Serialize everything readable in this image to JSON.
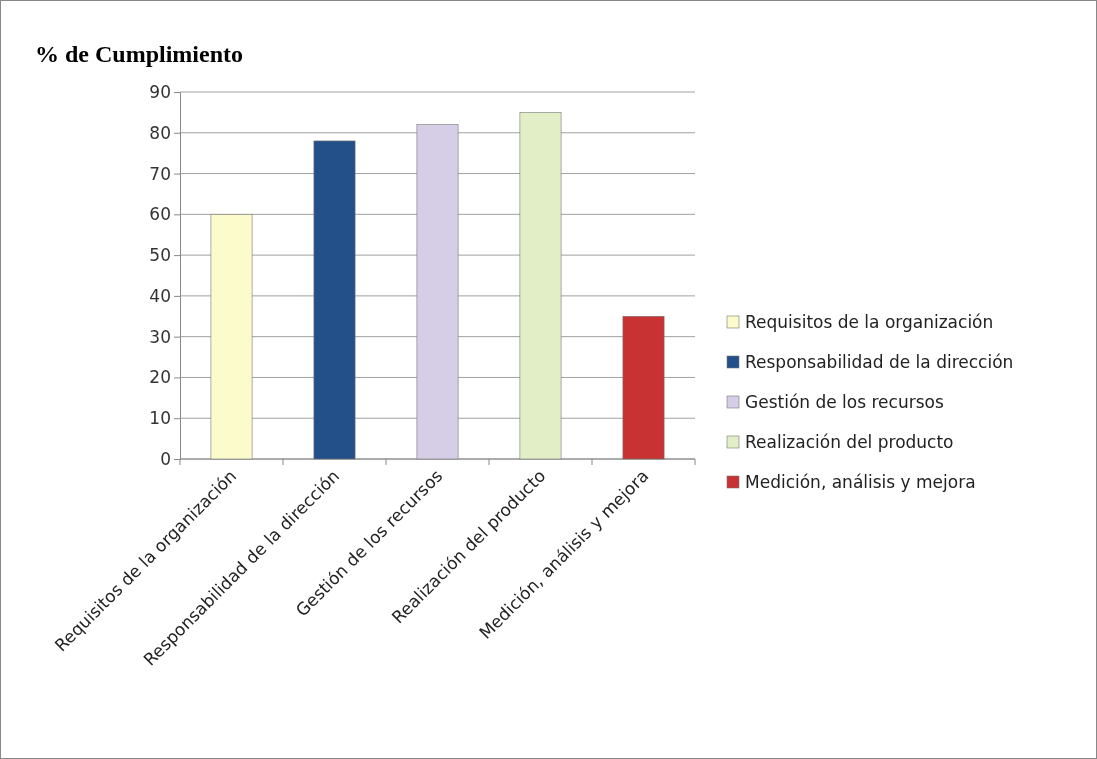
{
  "chart_data": {
    "type": "bar",
    "title": "% de Cumplimiento",
    "stacked": true,
    "categories": [
      "Requisitos de la organización",
      "Responsabilidad de la dirección",
      "Gestión de los recursos",
      "Realización del producto",
      "Medición, análisis y mejora"
    ],
    "series": [
      {
        "name": "Requisitos de la organización",
        "color": "#fbfbcc",
        "values": [
          60,
          null,
          null,
          null,
          null
        ]
      },
      {
        "name": "Responsabilidad de la dirección",
        "color": "#24508a",
        "values": [
          null,
          78,
          null,
          null,
          null
        ]
      },
      {
        "name": "Gestión de los recursos",
        "color": "#d6cde6",
        "values": [
          null,
          null,
          82,
          null,
          null
        ]
      },
      {
        "name": "Realización del producto",
        "color": "#e2efc6",
        "values": [
          null,
          null,
          null,
          85,
          null
        ]
      },
      {
        "name": "Medición, análisis y mejora",
        "color": "#c83232",
        "values": [
          null,
          null,
          null,
          null,
          35
        ]
      }
    ],
    "ylim": [
      0,
      90
    ],
    "yticks": [
      0,
      10,
      20,
      30,
      40,
      50,
      60,
      70,
      80,
      90
    ],
    "grid": "y",
    "legend": "right"
  }
}
